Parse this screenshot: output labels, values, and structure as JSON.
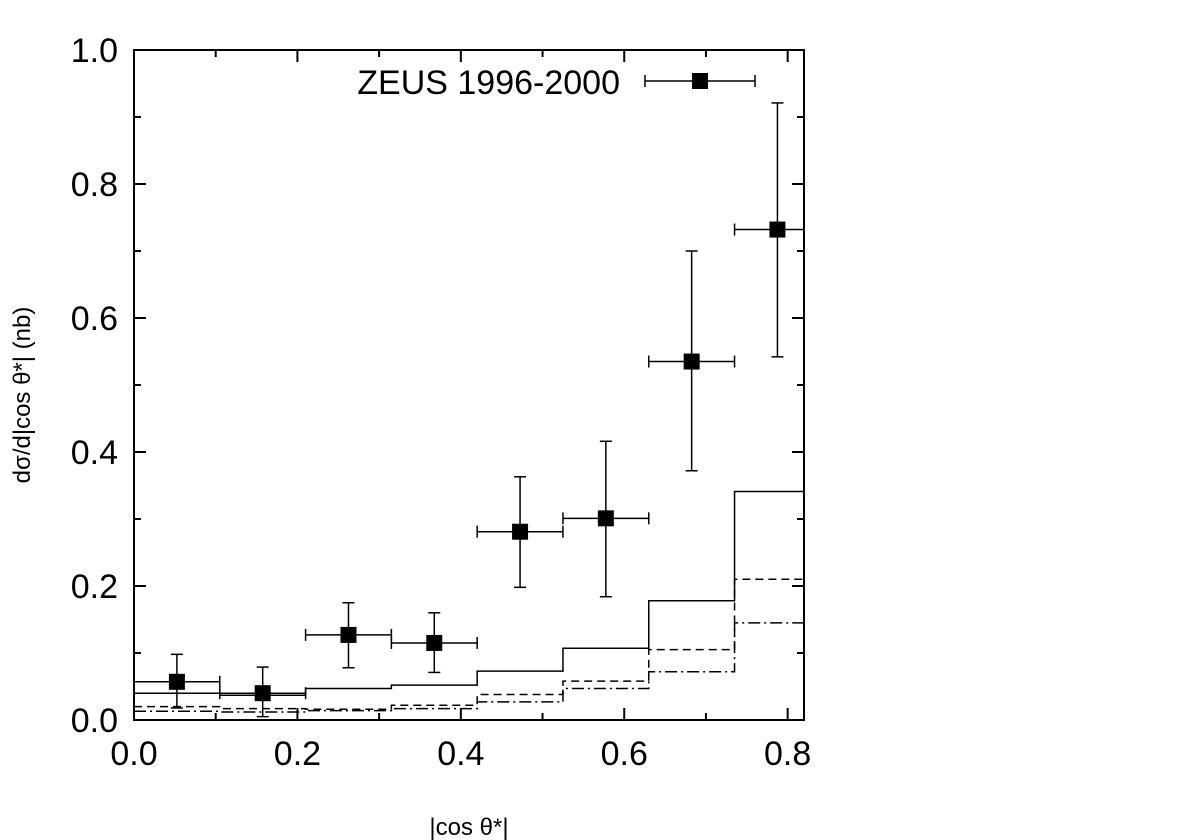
{
  "chart_data": {
    "type": "scatter",
    "title": "",
    "xlabel": "|cos θ*|",
    "ylabel": "dσ/d|cos θ*| (nb)",
    "xlim": [
      0.0,
      0.82
    ],
    "ylim": [
      0.0,
      1.0
    ],
    "xticks": [
      "0.0",
      "0.2",
      "0.4",
      "0.6",
      "0.8"
    ],
    "yticks": [
      "0.0",
      "0.2",
      "0.4",
      "0.6",
      "0.8",
      "1.0"
    ],
    "x_tick_values": [
      0.0,
      0.2,
      0.4,
      0.6,
      0.8
    ],
    "y_tick_values": [
      0.0,
      0.2,
      0.4,
      0.6,
      0.8,
      1.0
    ],
    "grid": false,
    "legend_placement": "top-right",
    "data_series": {
      "name": "ZEUS 1996-2000",
      "marker": "filled-square",
      "points": [
        {
          "x": 0.0525,
          "xlo": 0.0,
          "xhi": 0.105,
          "y": 0.057,
          "ylo": 0.018,
          "yhi": 0.098
        },
        {
          "x": 0.1575,
          "xlo": 0.105,
          "xhi": 0.21,
          "y": 0.04,
          "ylo": 0.005,
          "yhi": 0.079
        },
        {
          "x": 0.2625,
          "xlo": 0.21,
          "xhi": 0.315,
          "y": 0.127,
          "ylo": 0.078,
          "yhi": 0.175
        },
        {
          "x": 0.3675,
          "xlo": 0.315,
          "xhi": 0.42,
          "y": 0.115,
          "ylo": 0.071,
          "yhi": 0.16
        },
        {
          "x": 0.4725,
          "xlo": 0.42,
          "xhi": 0.525,
          "y": 0.281,
          "ylo": 0.198,
          "yhi": 0.363
        },
        {
          "x": 0.5775,
          "xlo": 0.525,
          "xhi": 0.63,
          "y": 0.301,
          "ylo": 0.184,
          "yhi": 0.416
        },
        {
          "x": 0.6825,
          "xlo": 0.63,
          "xhi": 0.735,
          "y": 0.535,
          "ylo": 0.372,
          "yhi": 0.7
        },
        {
          "x": 0.7875,
          "xlo": 0.735,
          "xhi": 0.84,
          "y": 0.732,
          "ylo": 0.542,
          "yhi": 0.921
        }
      ]
    },
    "histograms": [
      {
        "style": "solid",
        "bin_edges": [
          0.0,
          0.105,
          0.21,
          0.315,
          0.42,
          0.525,
          0.63,
          0.735,
          0.82
        ],
        "values": [
          0.04,
          0.037,
          0.047,
          0.052,
          0.073,
          0.107,
          0.178,
          0.341
        ]
      },
      {
        "style": "dashed",
        "bin_edges": [
          0.0,
          0.105,
          0.21,
          0.315,
          0.42,
          0.525,
          0.63,
          0.735,
          0.82
        ],
        "values": [
          0.02,
          0.017,
          0.016,
          0.022,
          0.038,
          0.058,
          0.105,
          0.21
        ]
      },
      {
        "style": "dashdot",
        "bin_edges": [
          0.0,
          0.105,
          0.21,
          0.315,
          0.42,
          0.525,
          0.63,
          0.735,
          0.82
        ],
        "values": [
          0.013,
          0.012,
          0.014,
          0.017,
          0.027,
          0.047,
          0.072,
          0.145
        ]
      }
    ]
  }
}
